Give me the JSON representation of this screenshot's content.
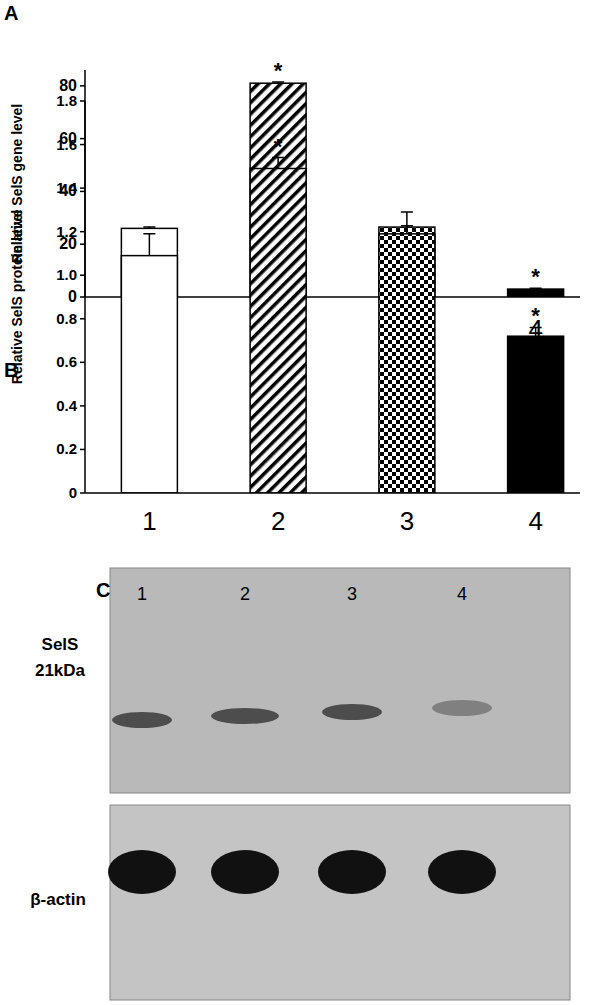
{
  "chart_data": [
    {
      "type": "bar",
      "panel": "A",
      "y_label": "Relative SelS gene level",
      "categories": [
        "1",
        "2",
        "3",
        "4"
      ],
      "values": [
        26,
        81,
        26.5,
        3
      ],
      "errors": [
        0.5,
        0.5,
        0.5,
        0.3
      ],
      "significance": [
        null,
        "*",
        null,
        "*"
      ],
      "colors": [
        "#ffffff",
        "#ffffff",
        "#ffffff",
        "#000000"
      ],
      "ylim": [
        0,
        86
      ],
      "yticks": [
        0,
        20,
        40,
        60,
        80
      ],
      "grid": false
    },
    {
      "type": "bar",
      "panel": "B",
      "y_label": "Relative SelS protein level",
      "categories": [
        "1",
        "2",
        "3",
        "4"
      ],
      "values": [
        1.09,
        1.49,
        1.19,
        0.72
      ],
      "errors": [
        0.1,
        0.05,
        0.1,
        0.04
      ],
      "significance": [
        null,
        "*",
        null,
        "*"
      ],
      "colors": [
        "#ffffff",
        "#ffffff",
        "#ffffff",
        "#000000"
      ],
      "ylim": [
        0,
        1.8
      ],
      "yticks": [
        0,
        {
          "value": 0.2,
          "label": "0.2"
        },
        {
          "value": 0.4,
          "label": "0.4"
        },
        {
          "value": 0.6,
          "label": "0.6"
        },
        {
          "value": 0.8,
          "label": "0.8"
        },
        {
          "value": 1,
          "label": "1.0"
        },
        {
          "value": 1.2,
          "label": "1.2"
        },
        {
          "value": 1.4,
          "label": "1.4"
        },
        {
          "value": 1.6,
          "label": "1.6"
        },
        {
          "value": 1.8,
          "label": "1.8"
        }
      ],
      "grid": false
    }
  ],
  "blot": {
    "panel": "C",
    "lanes": [
      "1",
      "2",
      "3",
      "4"
    ],
    "rows": [
      {
        "label": "SelS",
        "sublabel": "21kDa"
      },
      {
        "label": "β-actin"
      }
    ]
  }
}
